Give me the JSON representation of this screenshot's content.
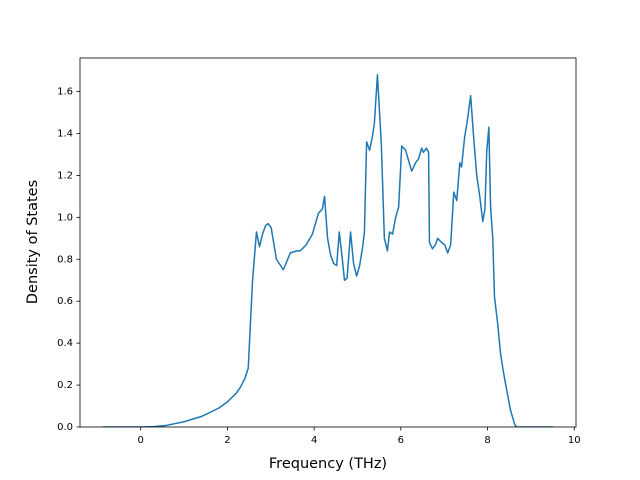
{
  "chart_data": {
    "type": "line",
    "xlabel": "Frequency (THz)",
    "ylabel": "Density of States",
    "x": [
      -0.88,
      0,
      0.3,
      0.6,
      1.0,
      1.4,
      1.8,
      2.0,
      2.2,
      2.3,
      2.4,
      2.48,
      2.52,
      2.58,
      2.67,
      2.74,
      2.81,
      2.88,
      2.94,
      3.01,
      3.13,
      3.29,
      3.45,
      3.6,
      3.68,
      3.82,
      3.96,
      4.1,
      4.19,
      4.24,
      4.31,
      4.38,
      4.45,
      4.52,
      4.58,
      4.64,
      4.7,
      4.76,
      4.84,
      4.91,
      4.98,
      5.05,
      5.12,
      5.16,
      5.21,
      5.28,
      5.34,
      5.39,
      5.46,
      5.55,
      5.62,
      5.69,
      5.74,
      5.81,
      5.88,
      5.95,
      6.02,
      6.11,
      6.18,
      6.25,
      6.34,
      6.41,
      6.48,
      6.52,
      6.59,
      6.64,
      6.66,
      6.73,
      6.8,
      6.85,
      6.94,
      7.01,
      7.08,
      7.15,
      7.22,
      7.29,
      7.36,
      7.4,
      7.47,
      7.54,
      7.61,
      7.68,
      7.75,
      7.82,
      7.89,
      7.94,
      7.98,
      8.03,
      8.07,
      8.12,
      8.16,
      8.23,
      8.3,
      8.36,
      8.42,
      8.53,
      8.63,
      8.67,
      9.0,
      9.52
    ],
    "series": [
      {
        "color": "#1f77b4",
        "values": [
          0,
          0,
          0.002,
          0.008,
          0.025,
          0.05,
          0.09,
          0.12,
          0.16,
          0.19,
          0.23,
          0.28,
          0.45,
          0.7,
          0.93,
          0.86,
          0.92,
          0.96,
          0.97,
          0.95,
          0.8,
          0.75,
          0.83,
          0.84,
          0.84,
          0.87,
          0.92,
          1.02,
          1.04,
          1.1,
          0.9,
          0.82,
          0.78,
          0.77,
          0.93,
          0.82,
          0.7,
          0.71,
          0.93,
          0.78,
          0.72,
          0.77,
          0.86,
          0.93,
          1.36,
          1.32,
          1.38,
          1.45,
          1.68,
          1.35,
          0.9,
          0.84,
          0.93,
          0.92,
          1.0,
          1.05,
          1.34,
          1.32,
          1.27,
          1.22,
          1.26,
          1.28,
          1.33,
          1.31,
          1.33,
          1.31,
          0.88,
          0.85,
          0.87,
          0.9,
          0.88,
          0.87,
          0.83,
          0.87,
          1.12,
          1.08,
          1.26,
          1.24,
          1.38,
          1.47,
          1.58,
          1.38,
          1.2,
          1.1,
          0.98,
          1.04,
          1.31,
          1.43,
          1.05,
          0.9,
          0.62,
          0.5,
          0.35,
          0.27,
          0.2,
          0.08,
          0.01,
          0,
          0,
          0
        ]
      }
    ],
    "xlim": [
      -1.4,
      10.04
    ],
    "ylim": [
      0,
      1.76
    ],
    "xticks": [
      0,
      2,
      4,
      6,
      8,
      10
    ],
    "yticks": [
      {
        "value": 0,
        "label": "0.0"
      },
      0.2,
      0.4,
      0.6,
      0.8,
      {
        "value": 1,
        "label": "1.0"
      },
      1.2,
      1.4,
      1.6
    ],
    "grid": false
  }
}
